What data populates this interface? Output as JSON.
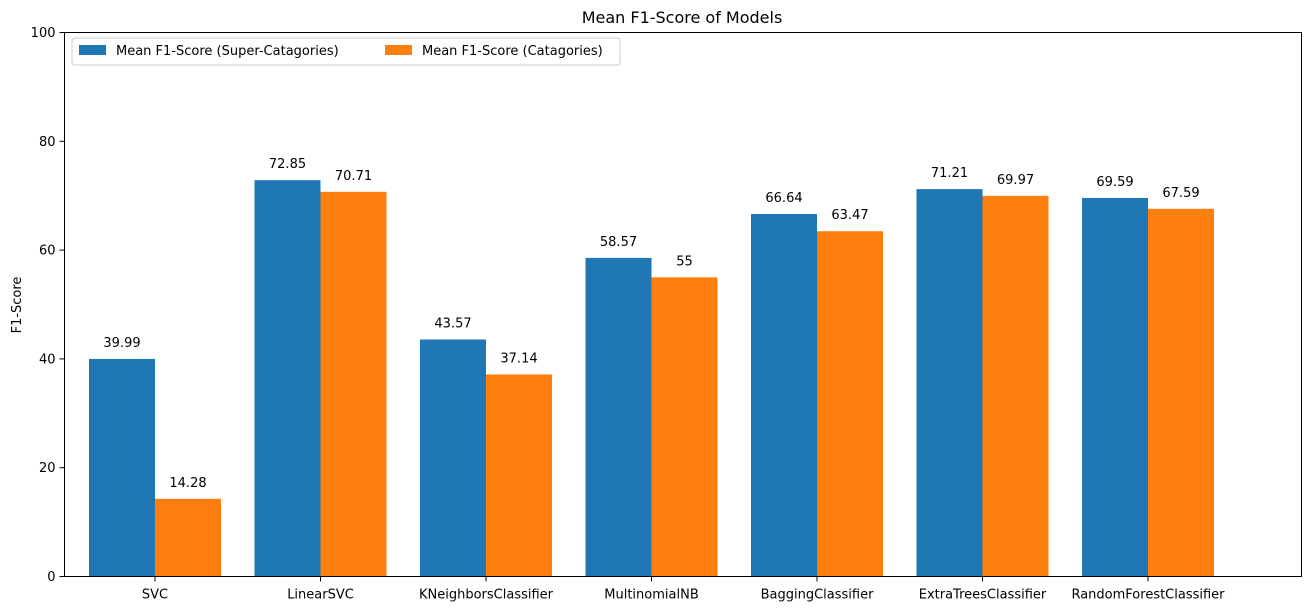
{
  "chart_data": {
    "type": "bar",
    "title": "Mean F1-Score of Models",
    "xlabel": "",
    "ylabel": "F1-Score",
    "ylim": [
      0,
      100
    ],
    "yticks": [
      0,
      20,
      40,
      60,
      80,
      100
    ],
    "categories": [
      "SVC",
      "LinearSVC",
      "KNeighborsClassifier",
      "MultinomialNB",
      "BaggingClassifier",
      "ExtraTreesClassifier",
      "RandomForestClassifier"
    ],
    "series": [
      {
        "name": "Mean F1-Score (Super-Catagories)",
        "color": "#1f77b4",
        "values": [
          39.99,
          72.85,
          43.57,
          58.57,
          66.64,
          71.21,
          69.59
        ],
        "labels": [
          "39.99",
          "72.85",
          "43.57",
          "58.57",
          "66.64",
          "71.21",
          "69.59"
        ]
      },
      {
        "name": "Mean F1-Score (Catagories)",
        "color": "#ff7f0e",
        "values": [
          14.28,
          70.71,
          37.14,
          55,
          63.47,
          69.97,
          67.59
        ],
        "labels": [
          "14.28",
          "70.71",
          "37.14",
          "55",
          "63.47",
          "69.97",
          "67.59"
        ]
      }
    ],
    "grid": false,
    "legend_position": "top-left"
  }
}
